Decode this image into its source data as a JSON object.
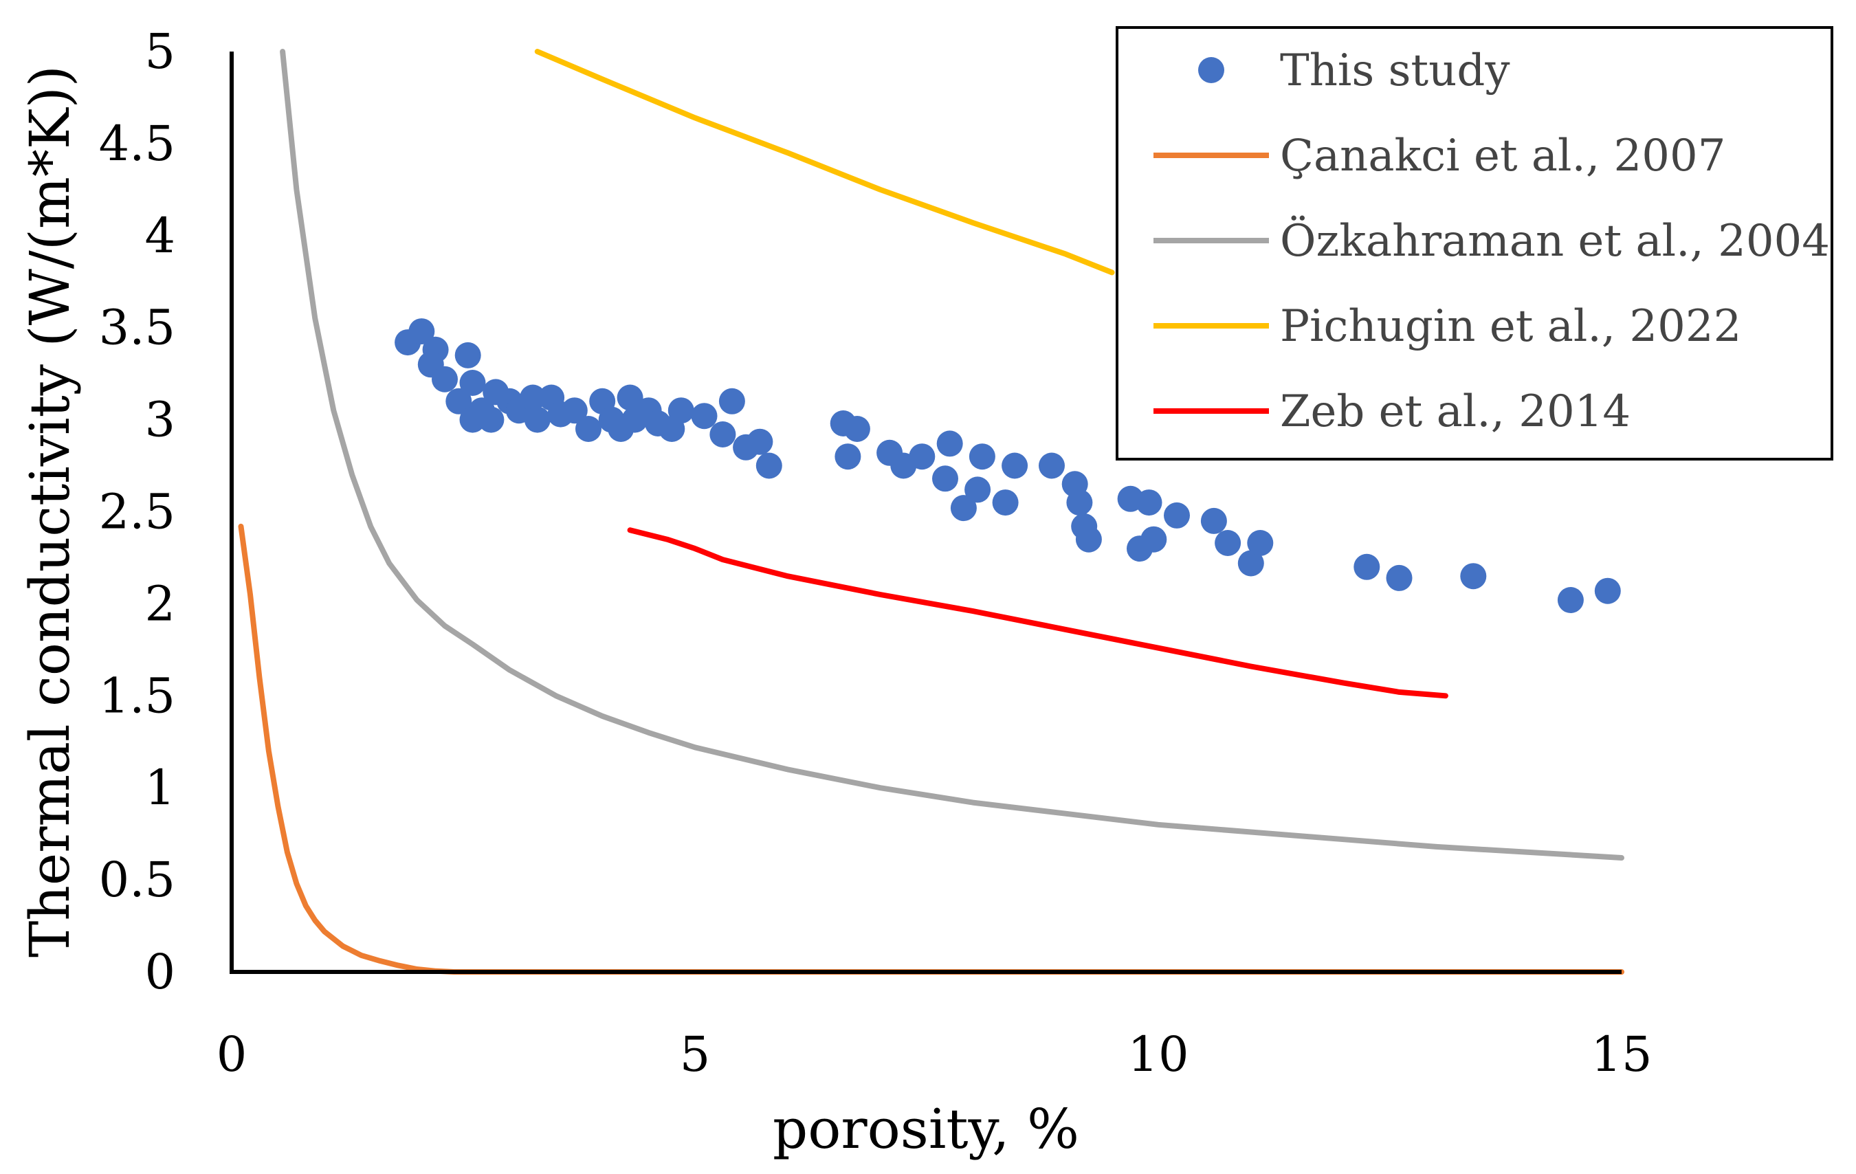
{
  "chart_data": {
    "type": "scatter",
    "title": "",
    "xlabel": "porosity, %",
    "ylabel": "Thermal conductivity (W/(m*K))",
    "xlim": [
      0,
      15
    ],
    "ylim": [
      0,
      5
    ],
    "x_ticks": [
      "0",
      "5",
      "10",
      "15"
    ],
    "y_ticks": [
      "0",
      "0.5",
      "1",
      "1.5",
      "2",
      "2.5",
      "3",
      "3.5",
      "4",
      "4.5",
      "5"
    ],
    "legend_position": "top-right",
    "grid": false,
    "series": [
      {
        "name": "This study",
        "kind": "scatter",
        "color": "#4472C4",
        "points": [
          [
            1.9,
            3.42
          ],
          [
            2.05,
            3.48
          ],
          [
            2.2,
            3.38
          ],
          [
            2.15,
            3.3
          ],
          [
            2.3,
            3.22
          ],
          [
            2.55,
            3.35
          ],
          [
            2.6,
            3.2
          ],
          [
            2.45,
            3.1
          ],
          [
            2.7,
            3.05
          ],
          [
            2.6,
            3.0
          ],
          [
            2.85,
            3.15
          ],
          [
            2.8,
            3.0
          ],
          [
            3.0,
            3.1
          ],
          [
            3.1,
            3.05
          ],
          [
            3.25,
            3.12
          ],
          [
            3.3,
            3.0
          ],
          [
            3.45,
            3.12
          ],
          [
            3.55,
            3.03
          ],
          [
            3.7,
            3.05
          ],
          [
            3.85,
            2.95
          ],
          [
            4.0,
            3.1
          ],
          [
            4.1,
            3.0
          ],
          [
            4.2,
            2.95
          ],
          [
            4.3,
            3.12
          ],
          [
            4.35,
            3.0
          ],
          [
            4.5,
            3.05
          ],
          [
            4.6,
            2.98
          ],
          [
            4.75,
            2.95
          ],
          [
            4.85,
            3.05
          ],
          [
            5.1,
            3.02
          ],
          [
            5.3,
            2.92
          ],
          [
            5.4,
            3.1
          ],
          [
            5.55,
            2.85
          ],
          [
            5.7,
            2.88
          ],
          [
            5.8,
            2.75
          ],
          [
            6.6,
            2.98
          ],
          [
            6.75,
            2.95
          ],
          [
            6.65,
            2.8
          ],
          [
            7.1,
            2.82
          ],
          [
            7.25,
            2.75
          ],
          [
            7.45,
            2.8
          ],
          [
            7.75,
            2.87
          ],
          [
            7.7,
            2.68
          ],
          [
            8.1,
            2.8
          ],
          [
            7.9,
            2.52
          ],
          [
            8.05,
            2.62
          ],
          [
            8.45,
            2.75
          ],
          [
            8.35,
            2.55
          ],
          [
            8.85,
            2.75
          ],
          [
            9.1,
            2.65
          ],
          [
            9.2,
            2.42
          ],
          [
            9.25,
            2.35
          ],
          [
            9.15,
            2.55
          ],
          [
            9.7,
            2.57
          ],
          [
            9.9,
            2.55
          ],
          [
            9.8,
            2.3
          ],
          [
            9.95,
            2.35
          ],
          [
            10.2,
            2.48
          ],
          [
            10.6,
            2.45
          ],
          [
            10.75,
            2.33
          ],
          [
            11.0,
            2.22
          ],
          [
            11.1,
            2.33
          ],
          [
            12.25,
            2.2
          ],
          [
            12.6,
            2.14
          ],
          [
            13.4,
            2.15
          ],
          [
            14.45,
            2.02
          ],
          [
            14.85,
            2.07
          ]
        ]
      },
      {
        "name": "Çanakci et al., 2007",
        "kind": "line",
        "color": "#ED7D31",
        "points": [
          [
            0.1,
            2.42
          ],
          [
            0.2,
            2.05
          ],
          [
            0.3,
            1.6
          ],
          [
            0.4,
            1.2
          ],
          [
            0.5,
            0.9
          ],
          [
            0.6,
            0.65
          ],
          [
            0.7,
            0.48
          ],
          [
            0.8,
            0.36
          ],
          [
            0.9,
            0.28
          ],
          [
            1.0,
            0.22
          ],
          [
            1.2,
            0.14
          ],
          [
            1.4,
            0.09
          ],
          [
            1.6,
            0.06
          ],
          [
            1.8,
            0.035
          ],
          [
            2.0,
            0.015
          ],
          [
            2.2,
            0.005
          ],
          [
            2.4,
            0.0
          ],
          [
            5.0,
            0.0
          ],
          [
            10.0,
            0.0
          ],
          [
            15.0,
            0.0
          ]
        ]
      },
      {
        "name": "Özkahraman et al., 2004",
        "kind": "line",
        "color": "#A5A5A5",
        "points": [
          [
            0.55,
            5.0
          ],
          [
            0.7,
            4.25
          ],
          [
            0.9,
            3.55
          ],
          [
            1.1,
            3.05
          ],
          [
            1.3,
            2.7
          ],
          [
            1.5,
            2.42
          ],
          [
            1.7,
            2.22
          ],
          [
            2.0,
            2.02
          ],
          [
            2.3,
            1.88
          ],
          [
            2.6,
            1.78
          ],
          [
            3.0,
            1.64
          ],
          [
            3.5,
            1.5
          ],
          [
            4.0,
            1.39
          ],
          [
            4.5,
            1.3
          ],
          [
            5.0,
            1.22
          ],
          [
            6.0,
            1.1
          ],
          [
            7.0,
            1.0
          ],
          [
            8.0,
            0.92
          ],
          [
            9.0,
            0.86
          ],
          [
            10.0,
            0.8
          ],
          [
            11.0,
            0.76
          ],
          [
            12.0,
            0.72
          ],
          [
            13.0,
            0.68
          ],
          [
            14.0,
            0.65
          ],
          [
            15.0,
            0.62
          ]
        ]
      },
      {
        "name": "Pichugin et al., 2022",
        "kind": "line",
        "color": "#FFC000",
        "points": [
          [
            3.3,
            5.0
          ],
          [
            4.0,
            4.85
          ],
          [
            5.0,
            4.64
          ],
          [
            6.0,
            4.45
          ],
          [
            7.0,
            4.25
          ],
          [
            8.0,
            4.07
          ],
          [
            9.0,
            3.9
          ],
          [
            9.5,
            3.8
          ]
        ]
      },
      {
        "name": "Zeb et al., 2014",
        "kind": "line",
        "color": "#FF0000",
        "points": [
          [
            4.3,
            2.4
          ],
          [
            4.7,
            2.35
          ],
          [
            5.0,
            2.3
          ],
          [
            5.3,
            2.24
          ],
          [
            6.0,
            2.15
          ],
          [
            7.0,
            2.05
          ],
          [
            8.0,
            1.96
          ],
          [
            9.0,
            1.86
          ],
          [
            10.0,
            1.76
          ],
          [
            11.0,
            1.66
          ],
          [
            12.0,
            1.57
          ],
          [
            12.6,
            1.52
          ],
          [
            13.1,
            1.5
          ]
        ]
      }
    ]
  }
}
